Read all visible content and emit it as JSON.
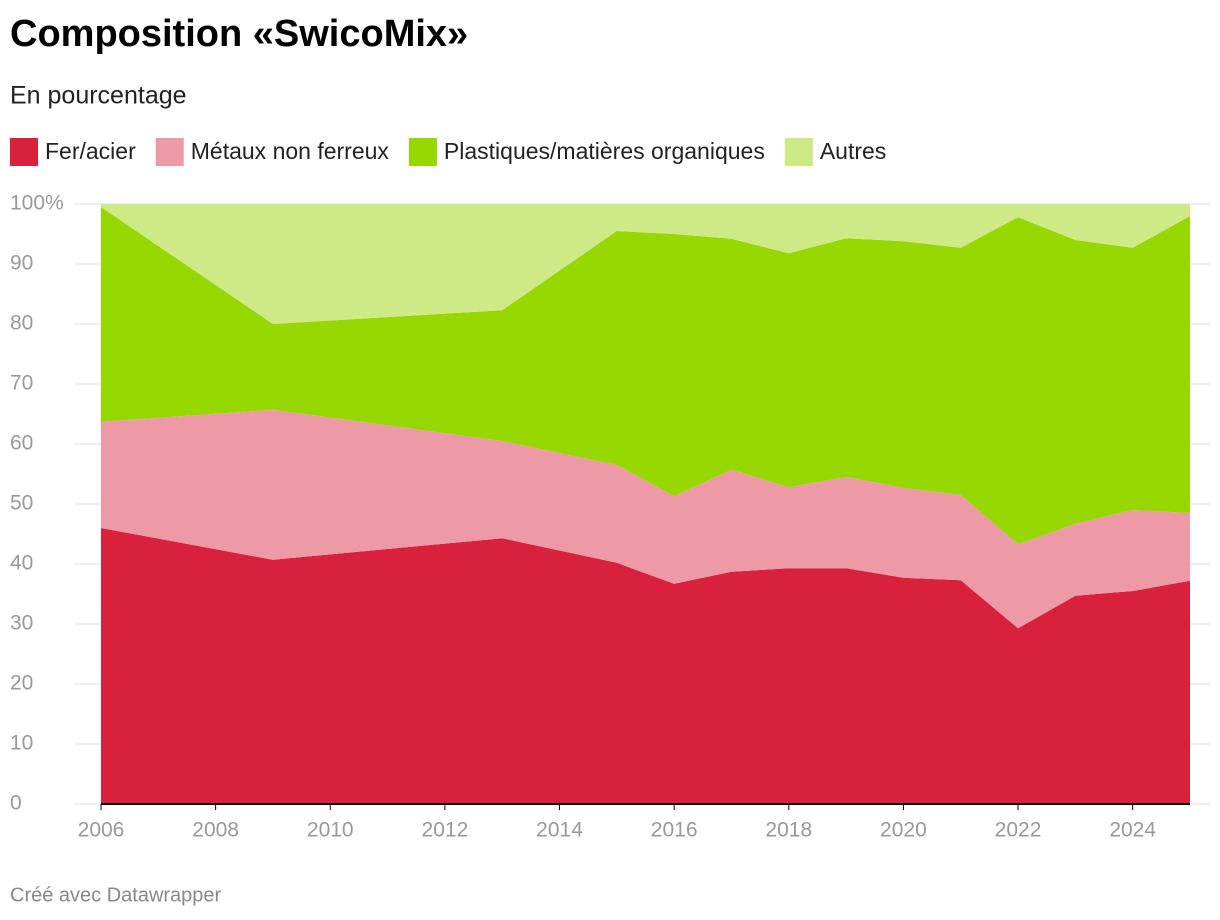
{
  "chart_data": {
    "type": "stacked-area",
    "title": "Composition «SwicoMix»",
    "subtitle": "En pourcentage",
    "footer": "Créé avec Datawrapper",
    "x": [
      2006,
      2009,
      2013,
      2015,
      2016,
      2017,
      2018,
      2019,
      2020,
      2021,
      2022,
      2023,
      2024,
      2025
    ],
    "series": [
      {
        "name": "Fer/acier",
        "color": "#d9213d",
        "values": [
          46.0,
          40.7,
          44.3,
          40.2,
          36.7,
          38.7,
          39.3,
          39.3,
          37.7,
          37.3,
          29.3,
          34.7,
          35.5,
          37.2
        ]
      },
      {
        "name": "Métaux non ferreux",
        "color": "#ed9aa6",
        "values": [
          17.7,
          25.0,
          16.2,
          16.3,
          14.6,
          17.0,
          13.5,
          15.2,
          15.0,
          14.2,
          14.0,
          12.0,
          13.5,
          11.3
        ]
      },
      {
        "name": "Plastiques/matières organiques",
        "color": "#96d700",
        "values": [
          35.8,
          14.3,
          21.8,
          39.0,
          43.7,
          38.5,
          39.0,
          39.8,
          41.1,
          41.2,
          54.5,
          47.3,
          43.7,
          49.5
        ]
      },
      {
        "name": "Autres",
        "color": "#cdea86",
        "values": [
          0.5,
          20.0,
          17.7,
          4.5,
          5.0,
          5.8,
          8.2,
          5.7,
          6.2,
          7.3,
          2.2,
          6.0,
          7.3,
          2.0
        ]
      }
    ],
    "xlim": [
      2006,
      2025
    ],
    "xticks": [
      2006,
      2008,
      2010,
      2012,
      2014,
      2016,
      2018,
      2020,
      2022,
      2024
    ],
    "ylim": [
      0,
      100
    ],
    "yticks": [
      0,
      10,
      20,
      30,
      40,
      50,
      60,
      70,
      80,
      90,
      {
        "value": 100,
        "label": "100%"
      }
    ],
    "grid": true
  }
}
